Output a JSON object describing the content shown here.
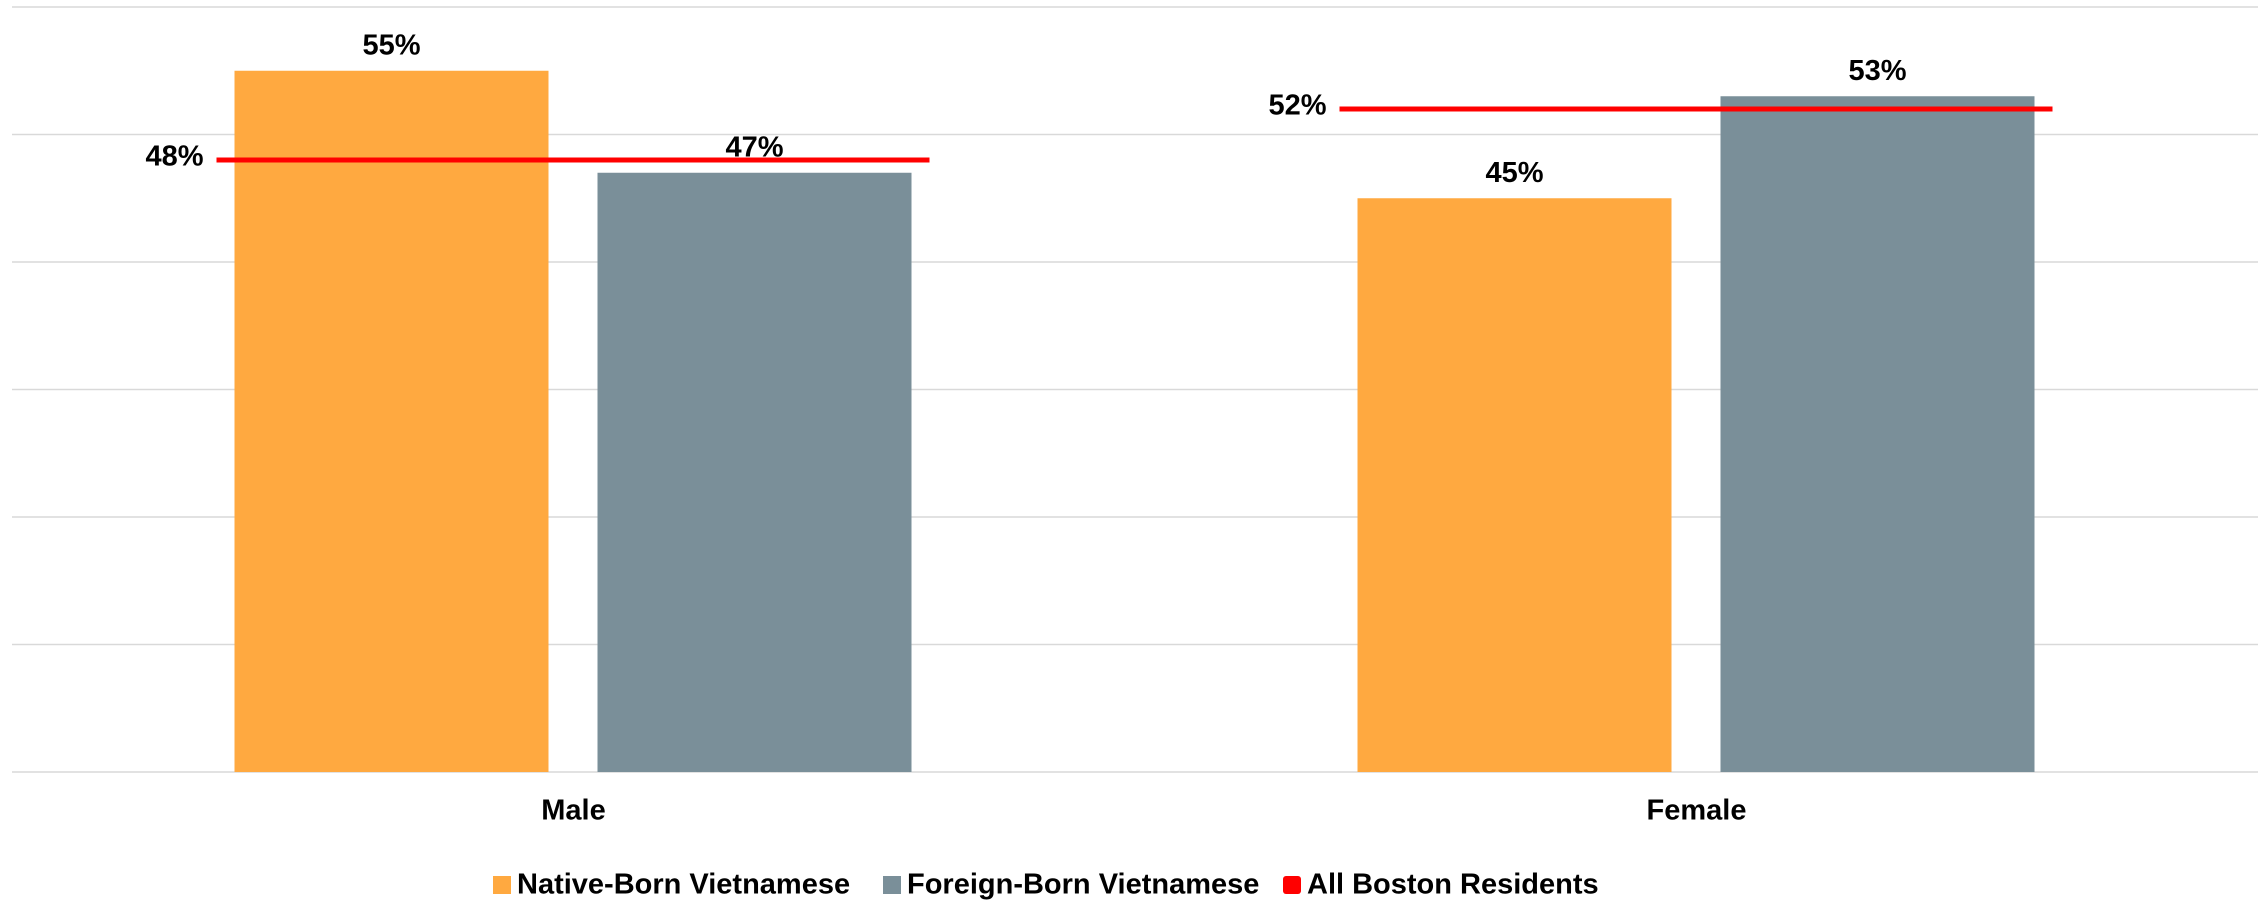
{
  "chart_data": {
    "type": "bar",
    "categories": [
      "Male",
      "Female"
    ],
    "series": [
      {
        "name": "Native-Born Vietnamese",
        "color": "#ffa940",
        "values": [
          55,
          45
        ],
        "value_labels": [
          "55%",
          "45%"
        ]
      },
      {
        "name": "Foreign-Born Vietnamese",
        "color": "#7a8f99",
        "values": [
          47,
          53
        ],
        "value_labels": [
          "47%",
          "53%"
        ]
      },
      {
        "name": "All Boston Residents",
        "color": "#ff0000",
        "type": "line",
        "values": [
          48,
          52
        ],
        "value_labels": [
          "48%",
          "52%"
        ]
      }
    ],
    "ylim": [
      0,
      60
    ],
    "yticks": [
      0,
      10,
      20,
      30,
      40,
      50,
      60
    ],
    "grid": true,
    "legend": "bottom"
  }
}
